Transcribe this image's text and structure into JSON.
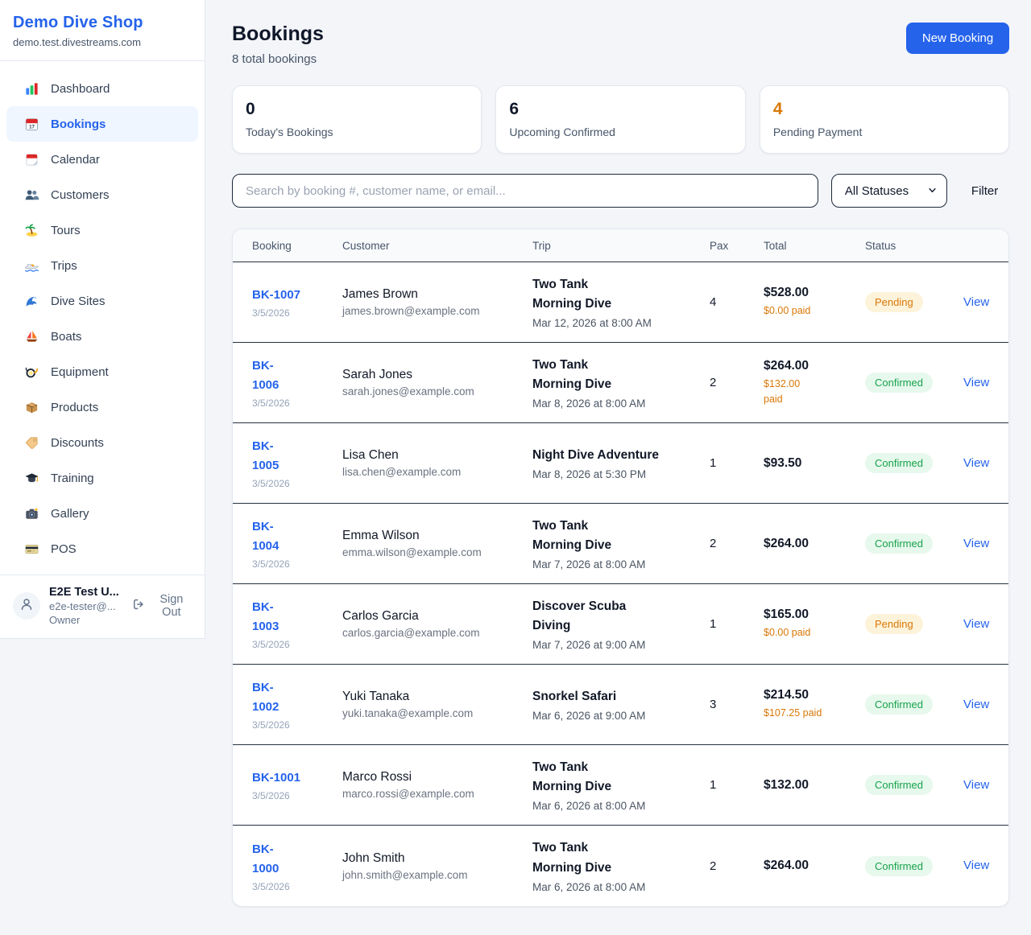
{
  "sidebar": {
    "shop_name": "Demo Dive Shop",
    "domain": "demo.test.divestreams.com",
    "items": [
      {
        "icon": "dashboard-icon",
        "label": "Dashboard",
        "active": false
      },
      {
        "icon": "bookings-icon",
        "label": "Bookings",
        "active": true
      },
      {
        "icon": "calendar-icon",
        "label": "Calendar",
        "active": false
      },
      {
        "icon": "customers-icon",
        "label": "Customers",
        "active": false
      },
      {
        "icon": "tours-icon",
        "label": "Tours",
        "active": false
      },
      {
        "icon": "trips-icon",
        "label": "Trips",
        "active": false
      },
      {
        "icon": "dive-sites-icon",
        "label": "Dive Sites",
        "active": false
      },
      {
        "icon": "boats-icon",
        "label": "Boats",
        "active": false
      },
      {
        "icon": "equipment-icon",
        "label": "Equipment",
        "active": false
      },
      {
        "icon": "products-icon",
        "label": "Products",
        "active": false
      },
      {
        "icon": "discounts-icon",
        "label": "Discounts",
        "active": false
      },
      {
        "icon": "training-icon",
        "label": "Training",
        "active": false
      },
      {
        "icon": "gallery-icon",
        "label": "Gallery",
        "active": false
      },
      {
        "icon": "pos-icon",
        "label": "POS",
        "active": false
      }
    ],
    "user": {
      "name": "E2E Test U...",
      "email": "e2e-tester@...",
      "role": "Owner",
      "sign_out_label": "Sign Out"
    }
  },
  "header": {
    "title": "Bookings",
    "subtitle": "8 total bookings",
    "new_booking_label": "New Booking"
  },
  "stats": [
    {
      "value": "0",
      "label": "Today's Bookings",
      "accent": false
    },
    {
      "value": "6",
      "label": "Upcoming Confirmed",
      "accent": false
    },
    {
      "value": "4",
      "label": "Pending Payment",
      "accent": true
    }
  ],
  "filters": {
    "search_placeholder": "Search by booking #, customer name, or email...",
    "status_selected": "All Statuses",
    "filter_label": "Filter"
  },
  "table": {
    "columns": [
      "Booking",
      "Customer",
      "Trip",
      "Pax",
      "Total",
      "Status"
    ],
    "rows": [
      {
        "number": "BK-1007",
        "number_wrap": false,
        "date": "3/5/2026",
        "customer": "James Brown",
        "email": "james.brown@example.com",
        "trip": "Two Tank Morning Dive",
        "trip_wrap": true,
        "trip_time": "Mar 12, 2026 at 8:00 AM",
        "pax": "4",
        "total": "$528.00",
        "paid": "$0.00 paid",
        "paid_wrap": false,
        "status": "Pending",
        "action": "View"
      },
      {
        "number": "BK-1006",
        "number_wrap": true,
        "date": "3/5/2026",
        "customer": "Sarah Jones",
        "email": "sarah.jones@example.com",
        "trip": "Two Tank Morning Dive",
        "trip_wrap": true,
        "trip_time": "Mar 8, 2026 at 8:00 AM",
        "pax": "2",
        "total": "$264.00",
        "paid": "$132.00 paid",
        "paid_wrap": true,
        "status": "Confirmed",
        "action": "View"
      },
      {
        "number": "BK-1005",
        "number_wrap": true,
        "date": "3/5/2026",
        "customer": "Lisa Chen",
        "email": "lisa.chen@example.com",
        "trip": "Night Dive Adventure",
        "trip_wrap": false,
        "trip_time": "Mar 8, 2026 at 5:30 PM",
        "pax": "1",
        "total": "$93.50",
        "paid": null,
        "paid_wrap": false,
        "status": "Confirmed",
        "action": "View"
      },
      {
        "number": "BK-1004",
        "number_wrap": true,
        "date": "3/5/2026",
        "customer": "Emma Wilson",
        "email": "emma.wilson@example.com",
        "trip": "Two Tank Morning Dive",
        "trip_wrap": true,
        "trip_time": "Mar 7, 2026 at 8:00 AM",
        "pax": "2",
        "total": "$264.00",
        "paid": null,
        "paid_wrap": false,
        "status": "Confirmed",
        "action": "View"
      },
      {
        "number": "BK-1003",
        "number_wrap": true,
        "date": "3/5/2026",
        "customer": "Carlos Garcia",
        "email": "carlos.garcia@example.com",
        "trip": "Discover Scuba Diving",
        "trip_wrap": true,
        "trip_time": "Mar 7, 2026 at 9:00 AM",
        "pax": "1",
        "total": "$165.00",
        "paid": "$0.00 paid",
        "paid_wrap": false,
        "status": "Pending",
        "action": "View"
      },
      {
        "number": "BK-1002",
        "number_wrap": true,
        "date": "3/5/2026",
        "customer": "Yuki Tanaka",
        "email": "yuki.tanaka@example.com",
        "trip": "Snorkel Safari",
        "trip_wrap": false,
        "trip_time": "Mar 6, 2026 at 9:00 AM",
        "pax": "3",
        "total": "$214.50",
        "paid": "$107.25 paid",
        "paid_wrap": false,
        "status": "Confirmed",
        "action": "View"
      },
      {
        "number": "BK-1001",
        "number_wrap": false,
        "date": "3/5/2026",
        "customer": "Marco Rossi",
        "email": "marco.rossi@example.com",
        "trip": "Two Tank Morning Dive",
        "trip_wrap": true,
        "trip_time": "Mar 6, 2026 at 8:00 AM",
        "pax": "1",
        "total": "$132.00",
        "paid": null,
        "paid_wrap": false,
        "status": "Confirmed",
        "action": "View"
      },
      {
        "number": "BK-1000",
        "number_wrap": true,
        "date": "3/5/2026",
        "customer": "John Smith",
        "email": "john.smith@example.com",
        "trip": "Two Tank Morning Dive",
        "trip_wrap": true,
        "trip_time": "Mar 6, 2026 at 8:00 AM",
        "pax": "2",
        "total": "$264.00",
        "paid": null,
        "paid_wrap": false,
        "status": "Confirmed",
        "action": "View"
      }
    ]
  },
  "colors": {
    "brand_blue": "#2563eb",
    "pending_orange": "#d97706",
    "confirmed_green": "#16a34a",
    "accent_orange": "#d97706"
  }
}
